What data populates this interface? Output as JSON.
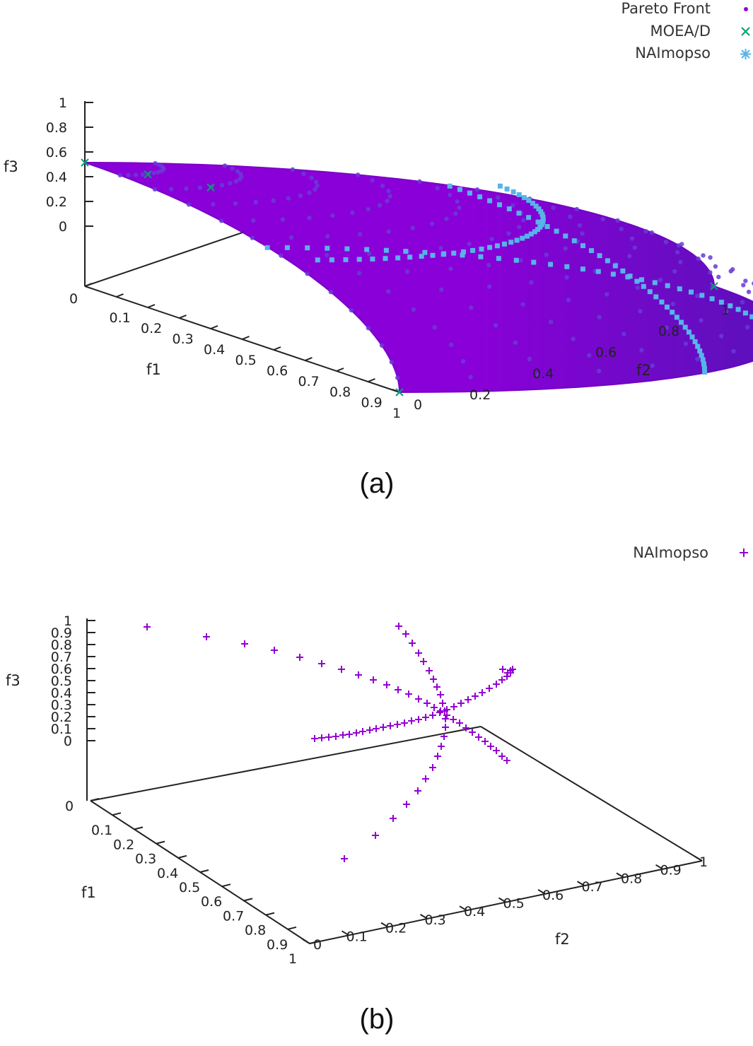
{
  "chart_data": [
    {
      "type": "scatter",
      "caption": "(a)",
      "xlabel": "f1",
      "ylabel": "f2",
      "zlabel": "f3",
      "xticks": [
        "0",
        "0.1",
        "0.2",
        "0.3",
        "0.4",
        "0.5",
        "0.6",
        "0.7",
        "0.8",
        "0.9",
        "1"
      ],
      "yticks": [
        "0",
        "0.2",
        "0.4",
        "0.6",
        "0.8",
        "1"
      ],
      "zticks": [
        "0",
        "0.2",
        "0.4",
        "0.6",
        "0.8",
        "1"
      ],
      "xlim": [
        0,
        1
      ],
      "ylim": [
        0,
        1
      ],
      "zlim": [
        0,
        1
      ],
      "legend_position": "top-right",
      "series": [
        {
          "name": "Pareto Front",
          "marker": "dot",
          "color": "#9400d3"
        },
        {
          "name": "MOEA/D",
          "marker": "x",
          "color": "#009e73"
        },
        {
          "name": "NAImopso",
          "marker": "star",
          "color": "#56b4e9"
        }
      ]
    },
    {
      "type": "scatter",
      "caption": "(b)",
      "xlabel": "f1",
      "ylabel": "f2",
      "zlabel": "f3",
      "xticks": [
        "0",
        "0.1",
        "0.2",
        "0.3",
        "0.4",
        "0.5",
        "0.6",
        "0.7",
        "0.8",
        "0.9",
        "1"
      ],
      "yticks": [
        "0",
        "0.1",
        "0.2",
        "0.3",
        "0.4",
        "0.5",
        "0.6",
        "0.7",
        "0.8",
        "0.9",
        "1"
      ],
      "zticks": [
        "0",
        "0.1",
        "0.2",
        "0.3",
        "0.4",
        "0.5",
        "0.6",
        "0.7",
        "0.8",
        "0.9",
        "1"
      ],
      "xlim": [
        0,
        1
      ],
      "ylim": [
        0,
        1
      ],
      "zlim": [
        0,
        1
      ],
      "legend_position": "top-right",
      "series": [
        {
          "name": "NAImopso",
          "marker": "plus",
          "color": "#9400d3"
        }
      ]
    }
  ]
}
